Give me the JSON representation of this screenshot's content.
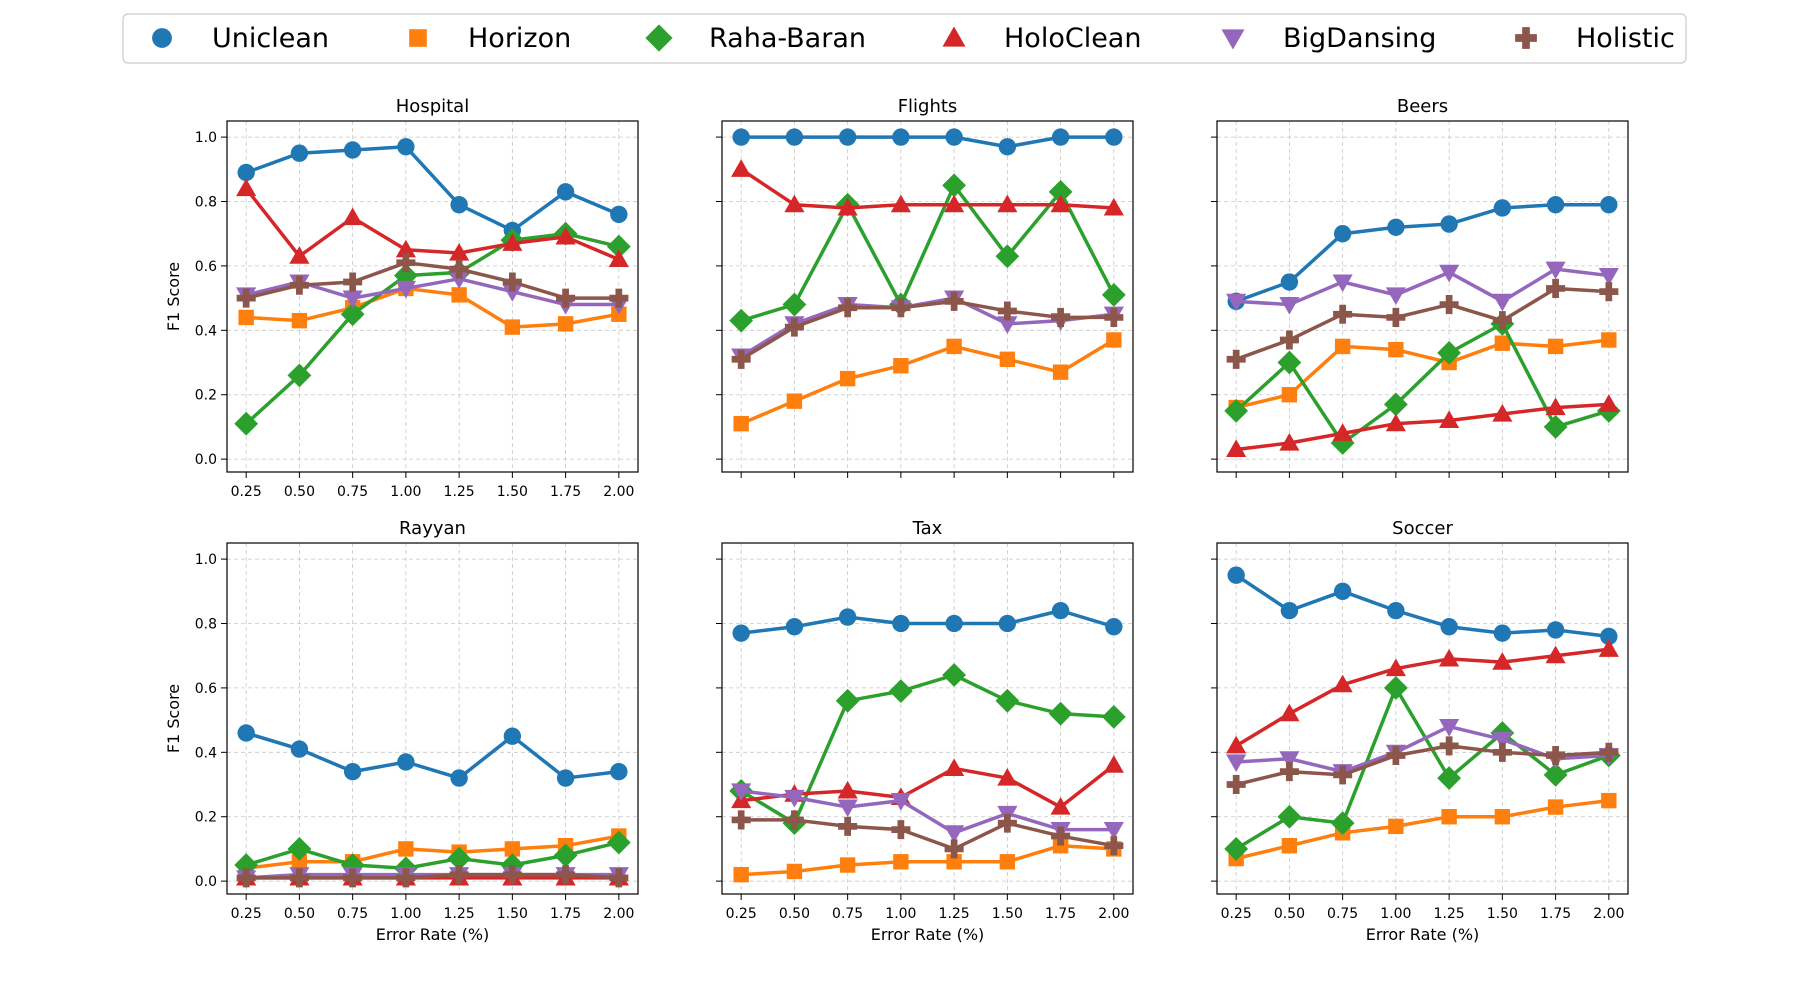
{
  "legend": {
    "placement": "top-center",
    "entries": [
      {
        "name": "Uniclean",
        "color": "#1f77b4",
        "marker": "circle"
      },
      {
        "name": "Horizon",
        "color": "#ff7f0e",
        "marker": "square"
      },
      {
        "name": "Raha-Baran",
        "color": "#2ca02c",
        "marker": "diamond"
      },
      {
        "name": "HoloClean",
        "color": "#d62728",
        "marker": "triangle-up"
      },
      {
        "name": "BigDansing",
        "color": "#9467bd",
        "marker": "triangle-down"
      },
      {
        "name": "Holistic",
        "color": "#8c564b",
        "marker": "plus"
      }
    ]
  },
  "chart_data": [
    {
      "type": "line",
      "title": "Hospital",
      "xlabel": "",
      "ylabel": "F1 Score",
      "x": [
        0.25,
        0.5,
        0.75,
        1.0,
        1.25,
        1.5,
        1.75,
        2.0
      ],
      "x_tick_labels": [
        "0.25",
        "0.50",
        "0.75",
        "1.00",
        "1.25",
        "1.50",
        "1.75",
        "2.00"
      ],
      "y_tick_labels": [
        "0.0",
        "0.2",
        "0.4",
        "0.6",
        "0.8",
        "1.0"
      ],
      "ylim": [
        -0.04,
        1.05
      ],
      "grid": true,
      "series": [
        {
          "name": "Uniclean",
          "values": [
            0.89,
            0.95,
            0.96,
            0.97,
            0.79,
            0.71,
            0.83,
            0.76
          ]
        },
        {
          "name": "Horizon",
          "values": [
            0.44,
            0.43,
            0.47,
            0.53,
            0.51,
            0.41,
            0.42,
            0.45
          ]
        },
        {
          "name": "Raha-Baran",
          "values": [
            0.11,
            0.26,
            0.45,
            0.57,
            0.58,
            0.68,
            0.7,
            0.66
          ]
        },
        {
          "name": "HoloClean",
          "values": [
            0.84,
            0.63,
            0.75,
            0.65,
            0.64,
            0.67,
            0.69,
            0.62
          ]
        },
        {
          "name": "BigDansing",
          "values": [
            0.51,
            0.55,
            0.5,
            0.53,
            0.56,
            0.52,
            0.48,
            0.48
          ]
        },
        {
          "name": "Holistic",
          "values": [
            0.5,
            0.54,
            0.55,
            0.61,
            0.59,
            0.55,
            0.5,
            0.5
          ]
        }
      ]
    },
    {
      "type": "line",
      "title": "Flights",
      "xlabel": "",
      "ylabel": "",
      "x": [
        0.25,
        0.5,
        0.75,
        1.0,
        1.25,
        1.5,
        1.75,
        2.0
      ],
      "x_tick_labels": [],
      "y_tick_labels": [],
      "ylim": [
        -0.04,
        1.05
      ],
      "grid": true,
      "series": [
        {
          "name": "Uniclean",
          "values": [
            1.0,
            1.0,
            1.0,
            1.0,
            1.0,
            0.97,
            1.0,
            1.0
          ]
        },
        {
          "name": "Horizon",
          "values": [
            0.11,
            0.18,
            0.25,
            0.29,
            0.35,
            0.31,
            0.27,
            0.37
          ]
        },
        {
          "name": "Raha-Baran",
          "values": [
            0.43,
            0.48,
            0.79,
            0.48,
            0.85,
            0.63,
            0.83,
            0.51
          ]
        },
        {
          "name": "HoloClean",
          "values": [
            0.9,
            0.79,
            0.78,
            0.79,
            0.79,
            0.79,
            0.79,
            0.78
          ]
        },
        {
          "name": "BigDansing",
          "values": [
            0.32,
            0.42,
            0.48,
            0.47,
            0.5,
            0.42,
            0.43,
            0.45
          ]
        },
        {
          "name": "Holistic",
          "values": [
            0.31,
            0.41,
            0.47,
            0.47,
            0.49,
            0.46,
            0.44,
            0.44
          ]
        }
      ]
    },
    {
      "type": "line",
      "title": "Beers",
      "xlabel": "",
      "ylabel": "",
      "x": [
        0.25,
        0.5,
        0.75,
        1.0,
        1.25,
        1.5,
        1.75,
        2.0
      ],
      "x_tick_labels": [],
      "y_tick_labels": [],
      "ylim": [
        -0.04,
        1.05
      ],
      "grid": true,
      "series": [
        {
          "name": "Uniclean",
          "values": [
            0.49,
            0.55,
            0.7,
            0.72,
            0.73,
            0.78,
            0.79,
            0.79
          ]
        },
        {
          "name": "Horizon",
          "values": [
            0.16,
            0.2,
            0.35,
            0.34,
            0.3,
            0.36,
            0.35,
            0.37
          ]
        },
        {
          "name": "Raha-Baran",
          "values": [
            0.15,
            0.3,
            0.05,
            0.17,
            0.33,
            0.42,
            0.1,
            0.15
          ]
        },
        {
          "name": "HoloClean",
          "values": [
            0.03,
            0.05,
            0.08,
            0.11,
            0.12,
            0.14,
            0.16,
            0.17
          ]
        },
        {
          "name": "BigDansing",
          "values": [
            0.49,
            0.48,
            0.55,
            0.51,
            0.58,
            0.49,
            0.59,
            0.57
          ]
        },
        {
          "name": "Holistic",
          "values": [
            0.31,
            0.37,
            0.45,
            0.44,
            0.48,
            0.43,
            0.53,
            0.52
          ]
        }
      ]
    },
    {
      "type": "line",
      "title": "Rayyan",
      "xlabel": "Error Rate (%)",
      "ylabel": "F1 Score",
      "x": [
        0.25,
        0.5,
        0.75,
        1.0,
        1.25,
        1.5,
        1.75,
        2.0
      ],
      "x_tick_labels": [
        "0.25",
        "0.50",
        "0.75",
        "1.00",
        "1.25",
        "1.50",
        "1.75",
        "2.00"
      ],
      "y_tick_labels": [
        "0.0",
        "0.2",
        "0.4",
        "0.6",
        "0.8",
        "1.0"
      ],
      "ylim": [
        -0.04,
        1.05
      ],
      "grid": true,
      "series": [
        {
          "name": "Uniclean",
          "values": [
            0.46,
            0.41,
            0.34,
            0.37,
            0.32,
            0.45,
            0.32,
            0.34
          ]
        },
        {
          "name": "Horizon",
          "values": [
            0.04,
            0.06,
            0.06,
            0.1,
            0.09,
            0.1,
            0.11,
            0.14
          ]
        },
        {
          "name": "Raha-Baran",
          "values": [
            0.05,
            0.1,
            0.05,
            0.04,
            0.07,
            0.05,
            0.08,
            0.12
          ]
        },
        {
          "name": "HoloClean",
          "values": [
            0.01,
            0.01,
            0.01,
            0.01,
            0.01,
            0.01,
            0.01,
            0.01
          ]
        },
        {
          "name": "BigDansing",
          "values": [
            0.01,
            0.02,
            0.02,
            0.02,
            0.02,
            0.02,
            0.02,
            0.02
          ]
        },
        {
          "name": "Holistic",
          "values": [
            0.01,
            0.01,
            0.01,
            0.01,
            0.02,
            0.02,
            0.02,
            0.01
          ]
        }
      ]
    },
    {
      "type": "line",
      "title": "Tax",
      "xlabel": "Error Rate (%)",
      "ylabel": "",
      "x": [
        0.25,
        0.5,
        0.75,
        1.0,
        1.25,
        1.5,
        1.75,
        2.0
      ],
      "x_tick_labels": [
        "0.25",
        "0.50",
        "0.75",
        "1.00",
        "1.25",
        "1.50",
        "1.75",
        "2.00"
      ],
      "y_tick_labels": [],
      "ylim": [
        -0.04,
        1.05
      ],
      "grid": true,
      "series": [
        {
          "name": "Uniclean",
          "values": [
            0.77,
            0.79,
            0.82,
            0.8,
            0.8,
            0.8,
            0.84,
            0.79
          ]
        },
        {
          "name": "Horizon",
          "values": [
            0.02,
            0.03,
            0.05,
            0.06,
            0.06,
            0.06,
            0.11,
            0.1
          ]
        },
        {
          "name": "Raha-Baran",
          "values": [
            0.28,
            0.18,
            0.56,
            0.59,
            0.64,
            0.56,
            0.52,
            0.51
          ]
        },
        {
          "name": "HoloClean",
          "values": [
            0.25,
            0.27,
            0.28,
            0.26,
            0.35,
            0.32,
            0.23,
            0.36
          ]
        },
        {
          "name": "BigDansing",
          "values": [
            0.28,
            0.26,
            0.23,
            0.25,
            0.15,
            0.21,
            0.16,
            0.16
          ]
        },
        {
          "name": "Holistic",
          "values": [
            0.19,
            0.19,
            0.17,
            0.16,
            0.1,
            0.18,
            0.14,
            0.11
          ]
        }
      ]
    },
    {
      "type": "line",
      "title": "Soccer",
      "xlabel": "Error Rate (%)",
      "ylabel": "",
      "x": [
        0.25,
        0.5,
        0.75,
        1.0,
        1.25,
        1.5,
        1.75,
        2.0
      ],
      "x_tick_labels": [
        "0.25",
        "0.50",
        "0.75",
        "1.00",
        "1.25",
        "1.50",
        "1.75",
        "2.00"
      ],
      "y_tick_labels": [],
      "ylim": [
        -0.04,
        1.05
      ],
      "grid": true,
      "series": [
        {
          "name": "Uniclean",
          "values": [
            0.95,
            0.84,
            0.9,
            0.84,
            0.79,
            0.77,
            0.78,
            0.76
          ]
        },
        {
          "name": "Horizon",
          "values": [
            0.07,
            0.11,
            0.15,
            0.17,
            0.2,
            0.2,
            0.23,
            0.25
          ]
        },
        {
          "name": "Raha-Baran",
          "values": [
            0.1,
            0.2,
            0.18,
            0.6,
            0.32,
            0.46,
            0.33,
            0.39
          ]
        },
        {
          "name": "HoloClean",
          "values": [
            0.42,
            0.52,
            0.61,
            0.66,
            0.69,
            0.68,
            0.7,
            0.72
          ]
        },
        {
          "name": "BigDansing",
          "values": [
            0.37,
            0.38,
            0.34,
            0.4,
            0.48,
            0.44,
            0.38,
            0.39
          ]
        },
        {
          "name": "Holistic",
          "values": [
            0.3,
            0.34,
            0.33,
            0.39,
            0.42,
            0.4,
            0.39,
            0.4
          ]
        }
      ]
    }
  ]
}
